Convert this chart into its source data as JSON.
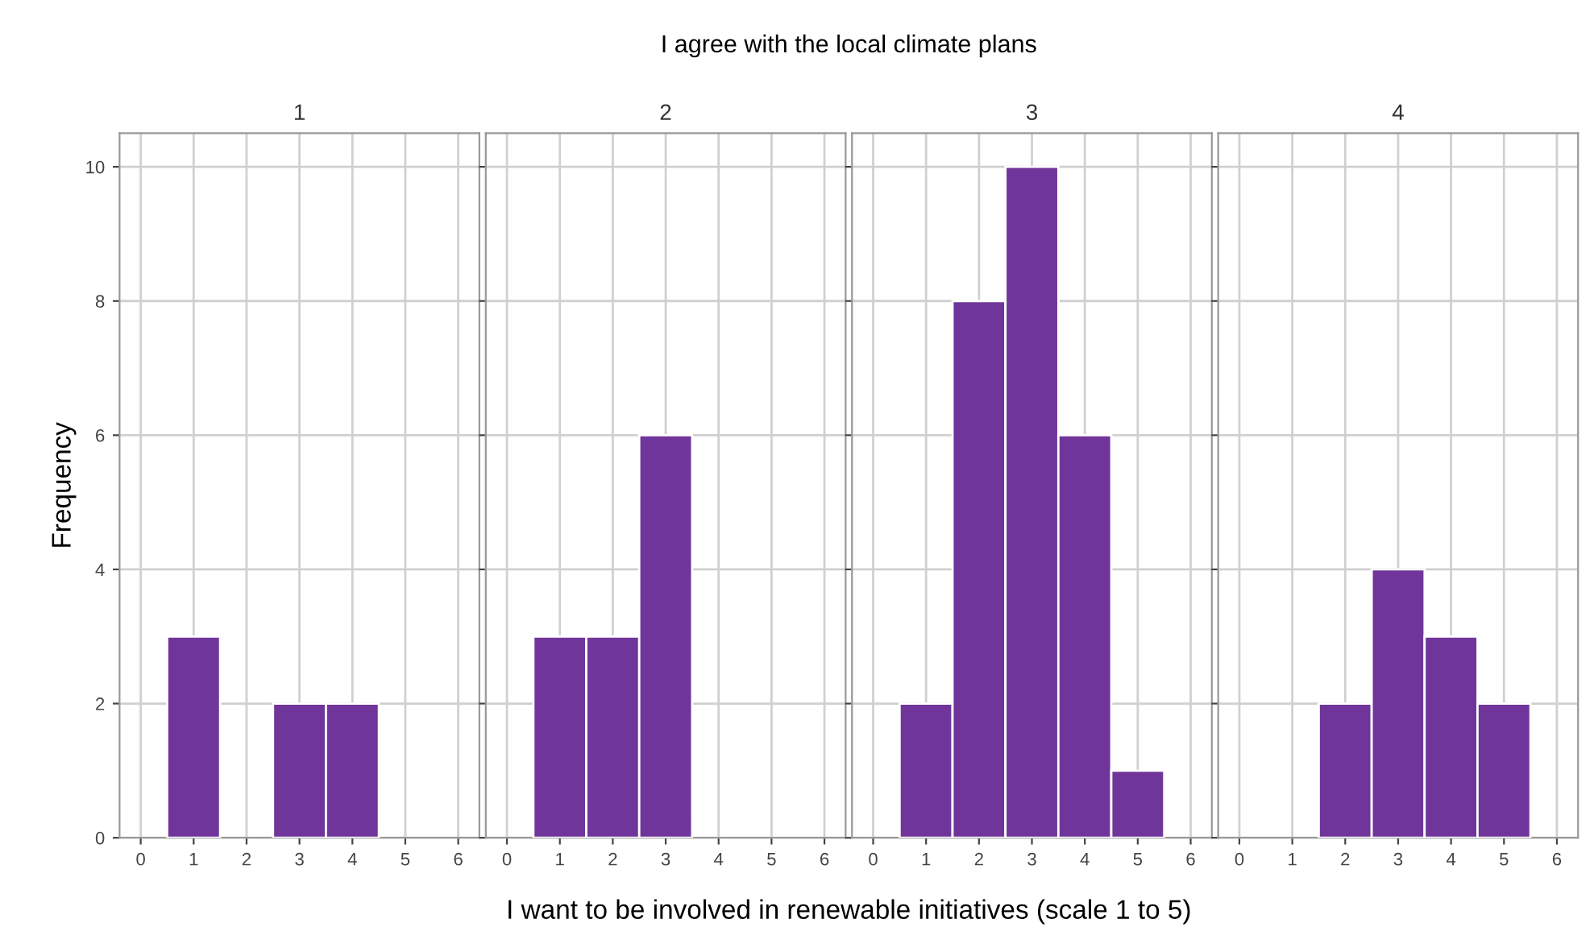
{
  "chart_data": [
    {
      "type": "histogram",
      "title": "1",
      "annotations": [
        "I agree with the local climate plans"
      ],
      "xlabel": "I want to be involved in renewable initiatives (scale 1 to 5)",
      "ylabel": "Frequency",
      "bins": [
        0.5,
        1.5,
        2.5,
        3.5,
        4.5
      ],
      "values": [
        3,
        0,
        2,
        2
      ],
      "color": "#70359a",
      "xlim": [
        -0.4,
        6.4
      ],
      "xticks": [
        0,
        1,
        2,
        3,
        4,
        5,
        6
      ],
      "ylim": [
        0,
        10.5
      ],
      "yticks": [
        0,
        2,
        4,
        6,
        8,
        10
      ],
      "grid": true
    },
    {
      "type": "histogram",
      "title": "2",
      "bins": [
        0.5,
        1.5,
        2.5,
        3.5
      ],
      "values": [
        3,
        3,
        6
      ],
      "color": "#70359a",
      "xlim": [
        -0.4,
        6.4
      ],
      "xticks": [
        0,
        1,
        2,
        3,
        4,
        5,
        6
      ],
      "ylim": [
        0,
        10.5
      ],
      "yticks": [
        0,
        2,
        4,
        6,
        8,
        10
      ],
      "grid": true,
      "tick_labels": "x"
    },
    {
      "type": "histogram",
      "title": "3",
      "bins": [
        0.5,
        1.5,
        2.5,
        3.5,
        4.5,
        5.5
      ],
      "values": [
        2,
        8,
        10,
        6,
        1
      ],
      "color": "#70359a",
      "xlim": [
        -0.4,
        6.4
      ],
      "xticks": [
        0,
        1,
        2,
        3,
        4,
        5,
        6
      ],
      "ylim": [
        0,
        10.5
      ],
      "yticks": [
        0,
        2,
        4,
        6,
        8,
        10
      ],
      "grid": true,
      "tick_labels": "x"
    },
    {
      "type": "histogram",
      "title": "4",
      "bins": [
        1.5,
        2.5,
        3.5,
        4.5,
        5.5
      ],
      "values": [
        2,
        4,
        3,
        2
      ],
      "color": "#70359a",
      "xlim": [
        -0.4,
        6.4
      ],
      "xticks": [
        0,
        1,
        2,
        3,
        4,
        5,
        6
      ],
      "ylim": [
        0,
        10.5
      ],
      "yticks": [
        0,
        2,
        4,
        6,
        8,
        10
      ],
      "grid": true,
      "tick_labels": "x"
    }
  ]
}
